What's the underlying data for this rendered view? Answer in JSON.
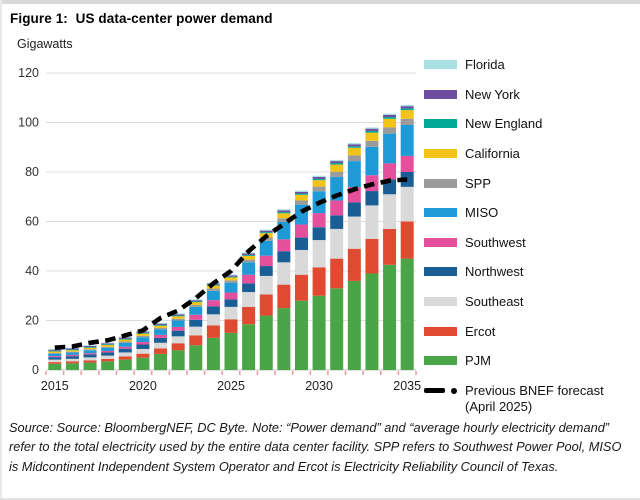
{
  "page": {
    "title": "Figure 1:  US data-center power demand",
    "y_axis_unit_label": "Gigawatts",
    "source_note": "Source: Source: BloombergNEF, DC Byte. Note: “Power demand” and “average hourly electricity demand” refer to the total electricity used by the entire data center facility. SPP refers to Southwest Power Pool, MISO is Midcontinent Independent System Operator and Ercot is Electricity Reliability Council of Texas."
  },
  "colors": {
    "gridline": "#dcdcdc",
    "baseline": "#c8c8c8",
    "x_tick": "#ea98a0",
    "axis_text": "#333333",
    "forecast_line": "#000000"
  },
  "chart_data": {
    "type": "bar",
    "subtype": "stacked-bars-with-forecast-line",
    "title": "US data-center power demand",
    "ylabel": "Gigawatts",
    "ylim": [
      0,
      120
    ],
    "y_ticks": [
      0,
      20,
      40,
      60,
      80,
      100,
      120
    ],
    "grid": true,
    "legend_position": "right",
    "x": [
      2015,
      2016,
      2017,
      2018,
      2019,
      2020,
      2021,
      2022,
      2023,
      2024,
      2025,
      2026,
      2027,
      2028,
      2029,
      2030,
      2031,
      2032,
      2033,
      2034,
      2035
    ],
    "x_tick_labels": [
      "2015",
      "2020",
      "2025",
      "2030",
      "2035"
    ],
    "series": [
      {
        "name": "PJM",
        "color": "#4aa547",
        "values": [
          2.5,
          2.7,
          3.0,
          3.5,
          4.2,
          5.0,
          6.5,
          8.0,
          10.0,
          13.0,
          15.0,
          18.5,
          22.0,
          25.0,
          28.0,
          30.0,
          33.0,
          36.0,
          39.0,
          42.5,
          45.0
        ]
      },
      {
        "name": "Ercot",
        "color": "#e04a31",
        "values": [
          0.7,
          0.8,
          0.9,
          1.0,
          1.3,
          1.6,
          2.2,
          2.8,
          4.0,
          5.0,
          5.5,
          7.0,
          8.5,
          9.5,
          10.5,
          11.5,
          12.0,
          13.0,
          14.0,
          14.5,
          15.0
        ]
      },
      {
        "name": "Southeast",
        "color": "#d9d9d9",
        "values": [
          1.0,
          1.0,
          1.2,
          1.3,
          1.6,
          1.9,
          2.3,
          2.8,
          3.5,
          4.5,
          5.0,
          6.0,
          7.5,
          9.0,
          10.0,
          11.0,
          12.0,
          13.0,
          13.5,
          14.0,
          14.0
        ]
      },
      {
        "name": "Northwest",
        "color": "#1a5e96",
        "values": [
          1.0,
          1.1,
          1.2,
          1.3,
          1.5,
          1.8,
          2.0,
          2.3,
          2.8,
          3.2,
          3.0,
          3.5,
          4.0,
          4.5,
          5.0,
          5.2,
          5.5,
          5.7,
          5.8,
          6.0,
          6.0
        ]
      },
      {
        "name": "Southwest",
        "color": "#e5509c",
        "values": [
          0.4,
          0.5,
          0.5,
          0.6,
          0.8,
          1.0,
          1.2,
          1.5,
          2.0,
          2.5,
          2.8,
          3.5,
          4.2,
          4.8,
          5.3,
          5.7,
          6.0,
          6.2,
          6.4,
          6.5,
          6.5
        ]
      },
      {
        "name": "MISO",
        "color": "#1e9bd7",
        "values": [
          1.0,
          1.0,
          1.2,
          1.3,
          1.6,
          1.9,
          2.2,
          2.6,
          3.2,
          3.8,
          4.0,
          5.0,
          6.0,
          7.0,
          8.0,
          8.8,
          9.5,
          10.5,
          11.5,
          12.0,
          12.5
        ]
      },
      {
        "name": "SPP",
        "color": "#9b9b9b",
        "values": [
          0.3,
          0.3,
          0.4,
          0.4,
          0.5,
          0.6,
          0.6,
          0.7,
          0.8,
          0.9,
          0.9,
          1.1,
          1.3,
          1.5,
          1.7,
          1.9,
          2.1,
          2.3,
          2.4,
          2.5,
          2.5
        ]
      },
      {
        "name": "California",
        "color": "#f3c317",
        "values": [
          0.6,
          0.6,
          0.6,
          0.7,
          0.8,
          0.9,
          0.9,
          1.0,
          1.1,
          1.2,
          1.2,
          1.5,
          1.8,
          2.0,
          2.3,
          2.6,
          2.9,
          3.1,
          3.3,
          3.5,
          3.5
        ]
      },
      {
        "name": "New England",
        "color": "#00a896",
        "values": [
          0.3,
          0.3,
          0.3,
          0.3,
          0.3,
          0.3,
          0.3,
          0.3,
          0.3,
          0.3,
          0.3,
          0.4,
          0.4,
          0.5,
          0.5,
          0.5,
          0.6,
          0.6,
          0.7,
          0.7,
          0.7
        ]
      },
      {
        "name": "New York",
        "color": "#6e4ea0",
        "values": [
          0.4,
          0.4,
          0.4,
          0.4,
          0.5,
          0.5,
          0.5,
          0.5,
          0.5,
          0.5,
          0.5,
          0.6,
          0.6,
          0.7,
          0.7,
          0.8,
          0.8,
          0.8,
          0.9,
          0.9,
          0.9
        ]
      },
      {
        "name": "Florida",
        "color": "#a9e1e3",
        "values": [
          0.3,
          0.3,
          0.3,
          0.3,
          0.4,
          0.4,
          0.4,
          0.4,
          0.4,
          0.4,
          0.4,
          0.4,
          0.5,
          0.5,
          0.5,
          0.5,
          0.5,
          0.5,
          0.5,
          0.5,
          0.5
        ]
      }
    ],
    "line_series": {
      "name": "Previous BNEF forecast (April 2025)",
      "legend_lines": [
        "Previous BNEF forecast",
        "(April 2025)"
      ],
      "color": "#000000",
      "style": "dashed",
      "values": [
        9,
        9.5,
        11,
        12,
        14,
        16,
        21,
        24,
        29,
        35,
        40,
        48,
        54,
        59,
        64,
        67.5,
        70.5,
        73,
        75,
        76.5,
        77
      ]
    }
  }
}
